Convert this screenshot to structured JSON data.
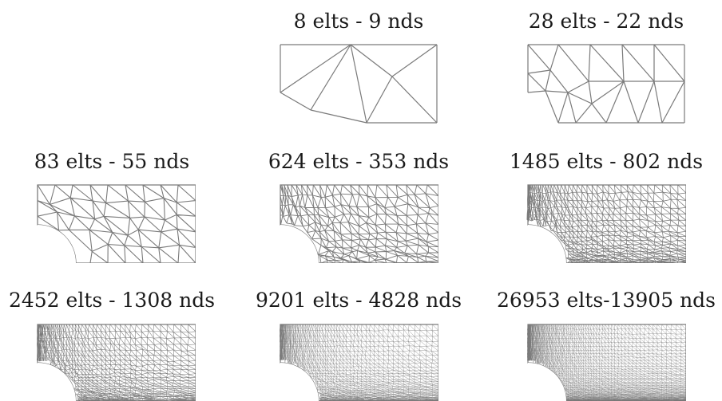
{
  "meshes": [
    {
      "label": "8 elts - 9 nds",
      "elements": 8,
      "nodes": 9
    },
    {
      "label": "28 elts - 22 nds",
      "elements": 28,
      "nodes": 22
    },
    {
      "label": "83 elts - 55 nds",
      "elements": 83,
      "nodes": 55
    },
    {
      "label": "624 elts - 353 nds",
      "elements": 624,
      "nodes": 353
    },
    {
      "label": "1485 elts - 802 nds",
      "elements": 1485,
      "nodes": 802
    },
    {
      "label": "2452 elts - 1308 nds",
      "elements": 2452,
      "nodes": 1308
    },
    {
      "label": "9201 elts - 4828 nds",
      "elements": 9201,
      "nodes": 4828
    },
    {
      "label": "26953 elts-13905 nds",
      "elements": 26953,
      "nodes": 13905
    }
  ],
  "colors": {
    "line": "#7a7a7a",
    "background": "#ffffff"
  }
}
